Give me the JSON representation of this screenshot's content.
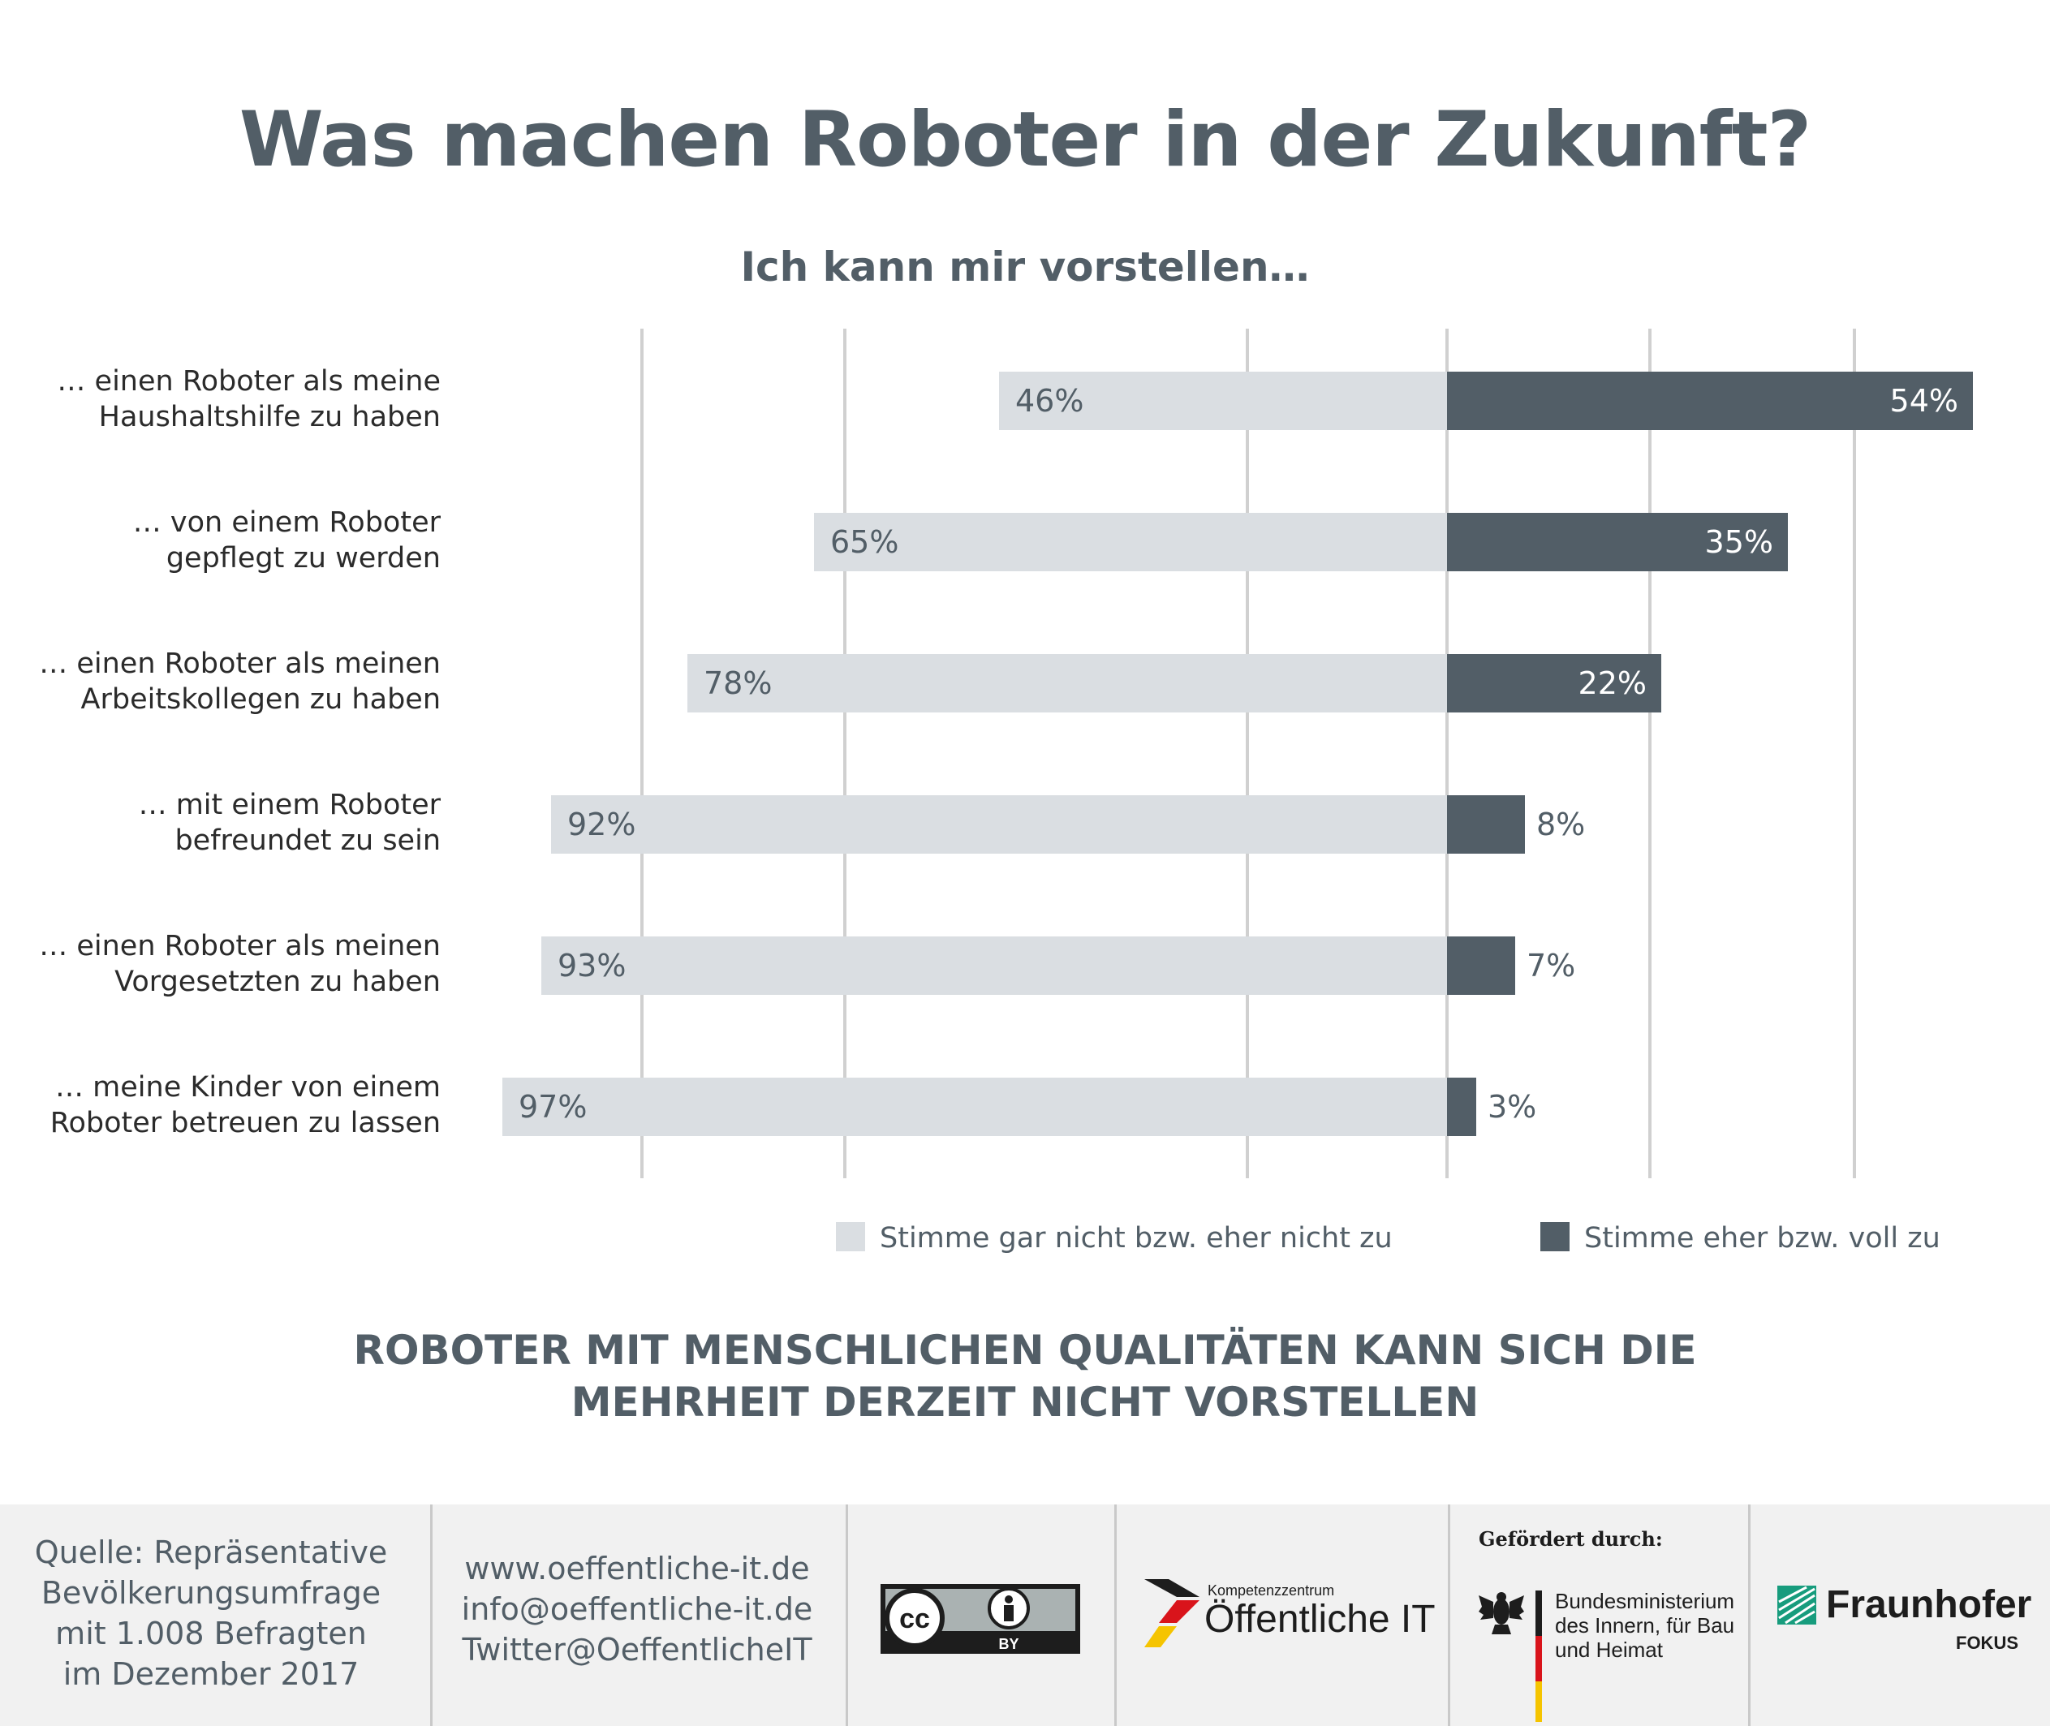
{
  "title": "Was machen Roboter in der Zukunft?",
  "subtitle": "Ich kann mir vorstellen…",
  "chart_data": {
    "type": "bar",
    "orientation": "horizontal-diverging",
    "categories": [
      [
        "… einen Roboter als meine",
        "Haushaltshilfe zu haben"
      ],
      [
        "… von einem Roboter",
        "gepflegt zu werden"
      ],
      [
        "… einen Roboter als meinen",
        "Arbeitskollegen zu haben"
      ],
      [
        "… mit einem Roboter",
        "befreundet zu sein"
      ],
      [
        "… einen Roboter als meinen",
        "Vorgesetzten zu haben"
      ],
      [
        "… meine Kinder von einem",
        "Roboter betreuen zu lassen"
      ]
    ],
    "series": [
      {
        "name": "Stimme gar nicht bzw. eher nicht zu",
        "color": "#dadee2",
        "values": [
          46,
          65,
          78,
          92,
          93,
          97
        ],
        "labels": [
          "46%",
          "65%",
          "78%",
          "92%",
          "93%",
          "97%"
        ]
      },
      {
        "name": "Stimme eher bzw. voll zu",
        "color": "#525e67",
        "values": [
          54,
          35,
          22,
          8,
          7,
          3
        ],
        "labels": [
          "54%",
          "35%",
          "22%",
          "8%",
          "7%",
          "3%"
        ]
      }
    ],
    "unit": "%",
    "grid": true,
    "legend": "bottom"
  },
  "headline": [
    "ROBOTER MIT MENSCHLICHEN QUALITÄTEN KANN SICH DIE",
    "MEHRHEIT DERZEIT NICHT VORSTELLEN"
  ],
  "footer": {
    "source": [
      "Quelle: Repräsentative",
      "Bevölkerungsumfrage",
      "mit 1.008 Befragten",
      "im Dezember 2017"
    ],
    "contact": [
      "www.oeffentliche-it.de",
      "info@oeffentliche-it.de",
      "Twitter@OeffentlicheIT"
    ],
    "cc_label": "BY",
    "kompetenz_small": "Kompetenzzentrum",
    "kompetenz_big": "Öffentliche IT",
    "gefoerdert": "Gefördert durch:",
    "ministry": [
      "Bundesministerium",
      "des Innern, für Bau",
      "und Heimat"
    ],
    "fraunhofer": "Fraunhofer",
    "fokus": "FOKUS"
  }
}
